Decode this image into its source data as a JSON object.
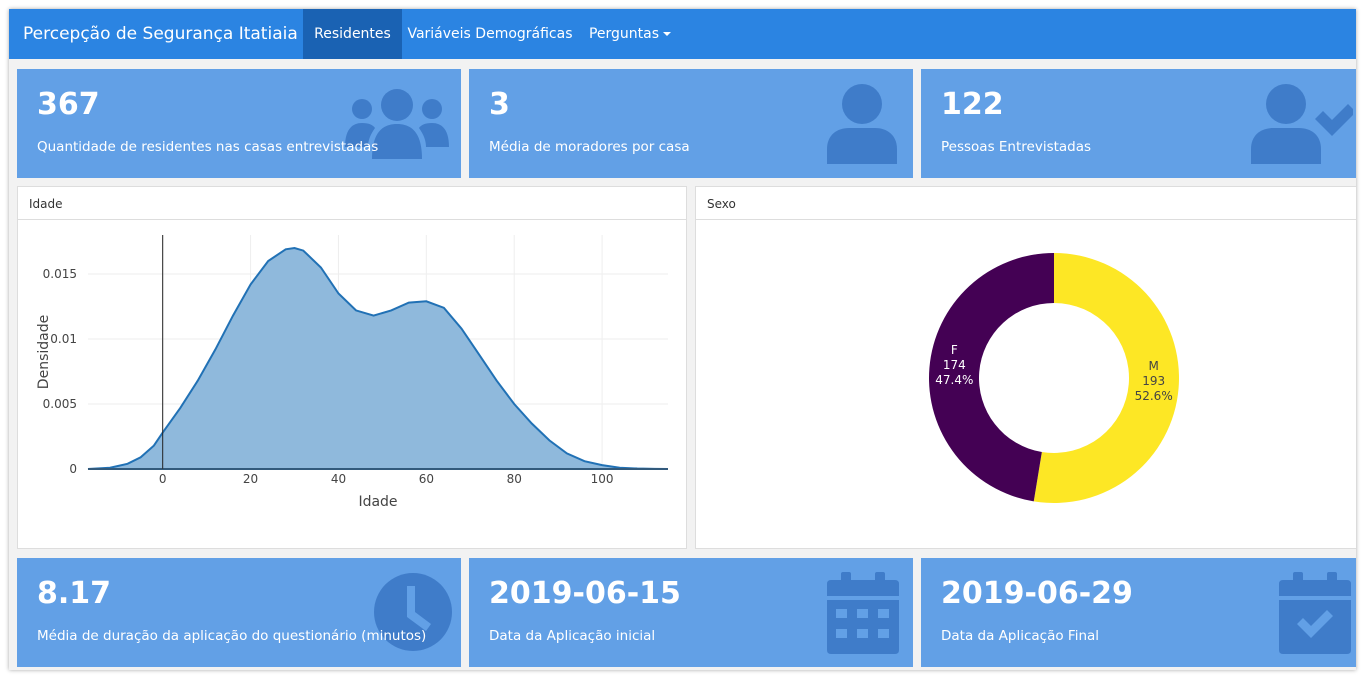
{
  "navbar": {
    "brand": "Percepção de Segurança Itatiaia",
    "tabs": [
      {
        "label": "Residentes",
        "active": true
      },
      {
        "label": "Variáveis Demográficas",
        "active": false
      },
      {
        "label": "Perguntas",
        "active": false,
        "dropdown": true
      }
    ]
  },
  "value_boxes_top": [
    {
      "value": "367",
      "subtitle": "Quantidade de residentes nas casas entrevistadas",
      "icon": "users-icon"
    },
    {
      "value": "3",
      "subtitle": "Média de moradores por casa",
      "icon": "user-icon"
    },
    {
      "value": "122",
      "subtitle": "Pessoas Entrevistadas",
      "icon": "user-check-icon"
    }
  ],
  "value_boxes_bottom": [
    {
      "value": "8.17",
      "subtitle": "Média de duração da aplicação do questionário (minutos)",
      "icon": "clock-icon"
    },
    {
      "value": "2019-06-15",
      "subtitle": "Data da Aplicação inicial",
      "icon": "calendar-icon"
    },
    {
      "value": "2019-06-29",
      "subtitle": "Data da Aplicação Final",
      "icon": "calendar-check-icon"
    }
  ],
  "panels": {
    "idade_title": "Idade",
    "sexo_title": "Sexo"
  },
  "colors": {
    "navbar": "#2b84e2",
    "nav_active": "#1a62b3",
    "value_box": "#62a0e6",
    "value_box_icon": "#3f7cc9",
    "density_fill": "#8fb9dc",
    "density_line": "#2171b5",
    "female": "#440154",
    "male": "#fde725"
  },
  "chart_data": [
    {
      "type": "area",
      "title": "Idade",
      "xlabel": "Idade",
      "ylabel": "Densidade",
      "xlim": [
        -17,
        115
      ],
      "ylim": [
        0,
        0.018
      ],
      "xticks": [
        "0",
        "20",
        "40",
        "60",
        "80",
        "100"
      ],
      "yticks": [
        "0",
        "0.005",
        "0.01",
        "0.015"
      ],
      "x": [
        -17,
        -12,
        -8,
        -5,
        -2,
        0,
        4,
        8,
        12,
        16,
        20,
        24,
        28,
        30,
        32,
        36,
        40,
        44,
        48,
        52,
        56,
        60,
        64,
        68,
        72,
        76,
        80,
        84,
        88,
        92,
        96,
        100,
        104,
        108,
        112,
        115
      ],
      "y": [
        0,
        0.0001,
        0.0004,
        0.0009,
        0.0018,
        0.0028,
        0.0047,
        0.0068,
        0.0092,
        0.0118,
        0.0142,
        0.016,
        0.0169,
        0.017,
        0.0168,
        0.0155,
        0.0135,
        0.0122,
        0.0118,
        0.0122,
        0.0128,
        0.0129,
        0.0124,
        0.0108,
        0.0088,
        0.0068,
        0.005,
        0.0035,
        0.0022,
        0.0012,
        0.0006,
        0.0003,
        0.0001,
        4e-05,
        1e-05,
        0
      ]
    },
    {
      "type": "pie",
      "title": "Sexo",
      "donut": true,
      "slices": [
        {
          "label": "M",
          "value": 193,
          "percent": "52.6%",
          "color": "#fde725"
        },
        {
          "label": "F",
          "value": 174,
          "percent": "47.4%",
          "color": "#440154"
        }
      ]
    }
  ]
}
